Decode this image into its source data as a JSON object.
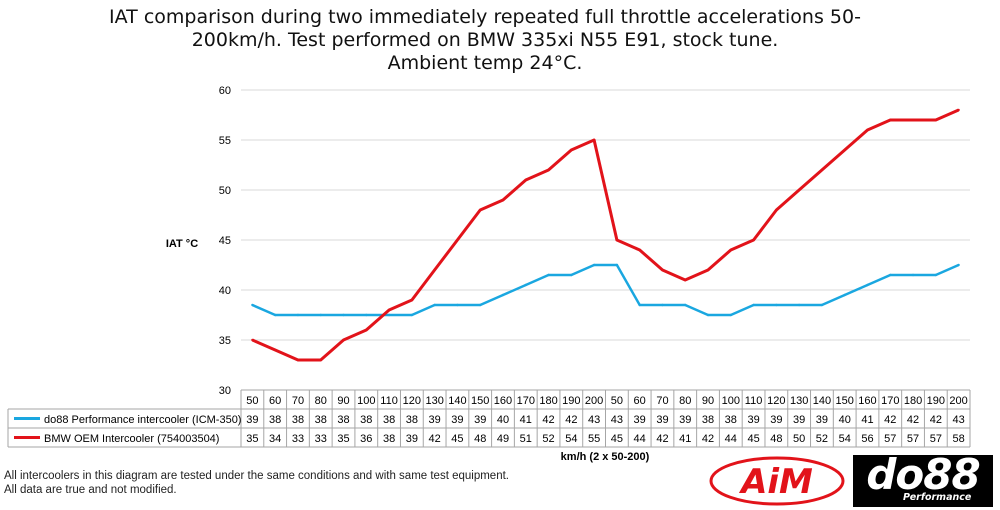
{
  "title_lines": [
    "IAT comparison during two immediately repeated full throttle accelerations 50-",
    "200km/h. Test performed on BMW 335xi N55 E91, stock tune.",
    "Ambient temp 24°C."
  ],
  "footnote_lines": [
    "All intercoolers in this diagram are tested under the same conditions and with same test equipment.",
    "All data are true and not modified."
  ],
  "logos": {
    "aim": "AiM",
    "do88": "do88",
    "do88_sub": "Performance"
  },
  "colors": {
    "series1": "#1aa7e0",
    "series2": "#e2131a",
    "grid": "#d9d9d9",
    "table_border": "#a6a6a6"
  },
  "chart_data": {
    "type": "line",
    "ylabel": "IAT °C",
    "xlabel": "km/h (2 x 50-200)",
    "ylim": [
      30,
      60
    ],
    "yticks": [
      30,
      35,
      40,
      45,
      50,
      55,
      60
    ],
    "grid": true,
    "legend": "data table below chart",
    "categories": [
      "50",
      "60",
      "70",
      "80",
      "90",
      "100",
      "110",
      "120",
      "130",
      "140",
      "150",
      "160",
      "170",
      "180",
      "190",
      "200",
      "50",
      "60",
      "70",
      "80",
      "90",
      "100",
      "110",
      "120",
      "130",
      "140",
      "150",
      "160",
      "170",
      "180",
      "190",
      "200"
    ],
    "series": [
      {
        "name": "do88 Performance intercooler (ICM-350)",
        "values": [
          38.5,
          37.5,
          37.5,
          37.5,
          37.5,
          37.5,
          37.5,
          37.5,
          38.5,
          38.5,
          38.5,
          39.5,
          40.5,
          41.5,
          41.5,
          42.5,
          42.5,
          38.5,
          38.5,
          38.5,
          37.5,
          37.5,
          38.5,
          38.5,
          38.5,
          38.5,
          39.5,
          40.5,
          41.5,
          41.5,
          41.5,
          42.5
        ],
        "labels": [
          "39",
          "38",
          "38",
          "38",
          "38",
          "38",
          "38",
          "38",
          "39",
          "39",
          "39",
          "40",
          "41",
          "42",
          "42",
          "43",
          "43",
          "39",
          "39",
          "39",
          "38",
          "38",
          "39",
          "39",
          "39",
          "39",
          "40",
          "41",
          "42",
          "42",
          "42",
          "43"
        ]
      },
      {
        "name": "BMW OEM Intercooler (754003504)",
        "values": [
          35,
          34,
          33,
          33,
          35,
          36,
          38,
          39,
          42,
          45,
          48,
          49,
          51,
          52,
          54,
          55,
          45,
          44,
          42,
          41,
          42,
          44,
          45,
          48,
          50,
          52,
          54,
          56,
          57,
          57,
          57,
          58
        ],
        "labels": [
          "35",
          "34",
          "33",
          "33",
          "35",
          "36",
          "38",
          "39",
          "42",
          "45",
          "48",
          "49",
          "51",
          "52",
          "54",
          "55",
          "45",
          "44",
          "42",
          "41",
          "42",
          "44",
          "45",
          "48",
          "50",
          "52",
          "54",
          "56",
          "57",
          "57",
          "57",
          "58"
        ]
      }
    ]
  }
}
